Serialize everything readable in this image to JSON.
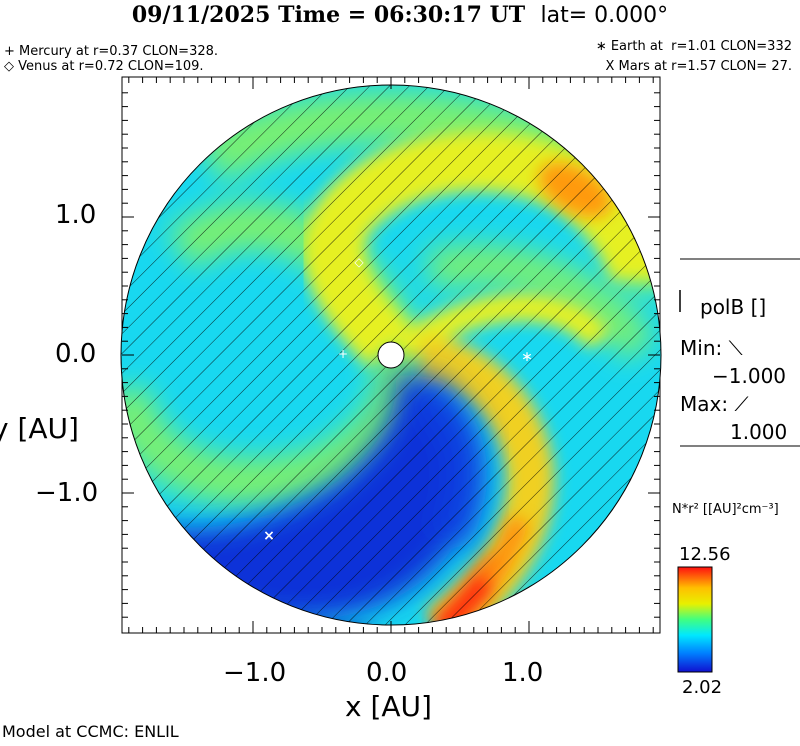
{
  "header": {
    "date": "09/11/2025",
    "time_text": "Time = 06:30:17 UT",
    "lat_text": "lat= 0.000°"
  },
  "planets": {
    "mercury": "+ Mercury at r=0.37 CLON=328.",
    "venus": "◇ Venus at r=0.72 CLON=109.",
    "earth": "∗ Earth at  r=1.01 CLON=332",
    "mars": "X Mars at r=1.57 CLON= 27."
  },
  "axes": {
    "xlabel": "x [AU]",
    "ylabel": "y [AU]",
    "x_ticks": [
      "−1.0",
      "0.0",
      "1.0"
    ],
    "y_ticks": [
      "1.0",
      "0.0",
      "−1.0"
    ],
    "xlim": [
      -1.95,
      1.95
    ],
    "ylim": [
      -1.95,
      1.95
    ]
  },
  "polarity": {
    "title": "polB []",
    "min_label": "Min: ⟍",
    "min_value": "−1.000",
    "max_label": "Max: ⟋",
    "max_value": "1.000"
  },
  "colorbar": {
    "quantity": "N*r² [[AU]²cm⁻³]",
    "max_value": "12.56",
    "min_value": "2.02",
    "colors": [
      "#ff1010",
      "#ffc000",
      "#e8f000",
      "#40ff80",
      "#00e8ff",
      "#0080ff",
      "#1010d0"
    ]
  },
  "credit": "Model at CCMC: ENLIL",
  "chart_data": {
    "type": "heatmap",
    "projection": "ecliptic plane, polar",
    "r_max_AU": 1.95,
    "markers": [
      {
        "name": "Mercury",
        "symbol": "+",
        "r": 0.37,
        "clon": 328
      },
      {
        "name": "Venus",
        "symbol": "◇",
        "r": 0.72,
        "clon": 109
      },
      {
        "name": "Earth",
        "symbol": "∗",
        "r": 1.01,
        "clon": 332
      },
      {
        "name": "Mars",
        "symbol": "X",
        "r": 1.57,
        "clon": 27
      }
    ],
    "color_range": [
      2.02,
      12.56
    ]
  }
}
